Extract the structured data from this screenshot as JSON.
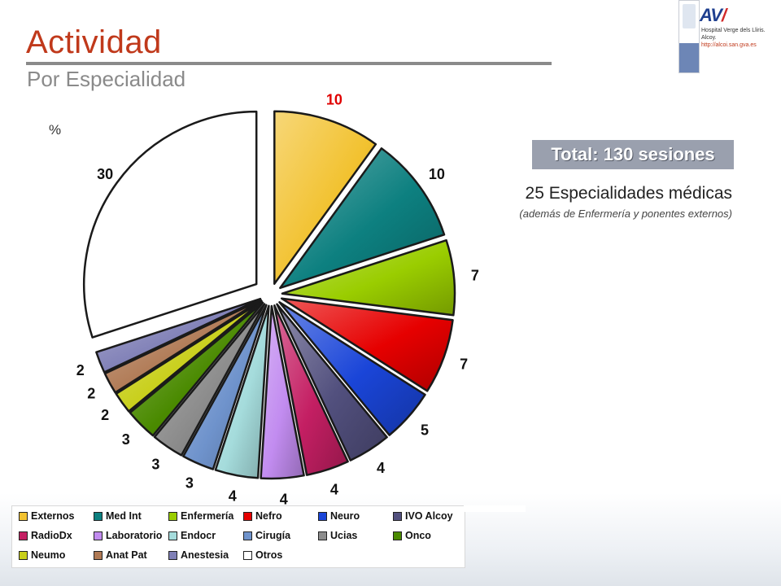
{
  "header": {
    "title": "Actividad",
    "subtitle": "Por Especialidad"
  },
  "logo": {
    "mark_blue": "AV",
    "mark_red": "/",
    "hospital_line1": "Hospital Verge dels Lliris.",
    "hospital_line2": "Alcoy.",
    "url": "http://alcoi.san.gva.es"
  },
  "panel": {
    "total": "Total: 130 sesiones",
    "specialties": "25 Especialidades médicas",
    "note": "(además de Enfermería y ponentes externos)"
  },
  "chart_data": {
    "type": "pie",
    "unit_label": "%",
    "categories": [
      "Externos",
      "Med Int",
      "Enfermería",
      "Nefro",
      "Neuro",
      "IVO Alcoy",
      "RadioDx",
      "Laboratorio",
      "Endocr",
      "Cirugía",
      "Ucias",
      "Onco",
      "Neumo",
      "Anat Pat",
      "Anestesia",
      "Otros"
    ],
    "values": [
      10,
      10,
      7,
      7,
      5,
      4,
      4,
      4,
      4,
      3,
      3,
      3,
      2,
      2,
      2,
      30
    ],
    "colors": [
      "#f2c230",
      "#0d8080",
      "#9acd00",
      "#e60000",
      "#1a45d8",
      "#52507e",
      "#c41f63",
      "#c28cf0",
      "#a5dcdc",
      "#6f93cc",
      "#8c8c8c",
      "#4a8a00",
      "#c8cf19",
      "#b07a55",
      "#7f7fb6",
      "#ffffff"
    ],
    "legend_placement": "bottom",
    "start_angle_deg": 0,
    "direction": "clockwise"
  }
}
